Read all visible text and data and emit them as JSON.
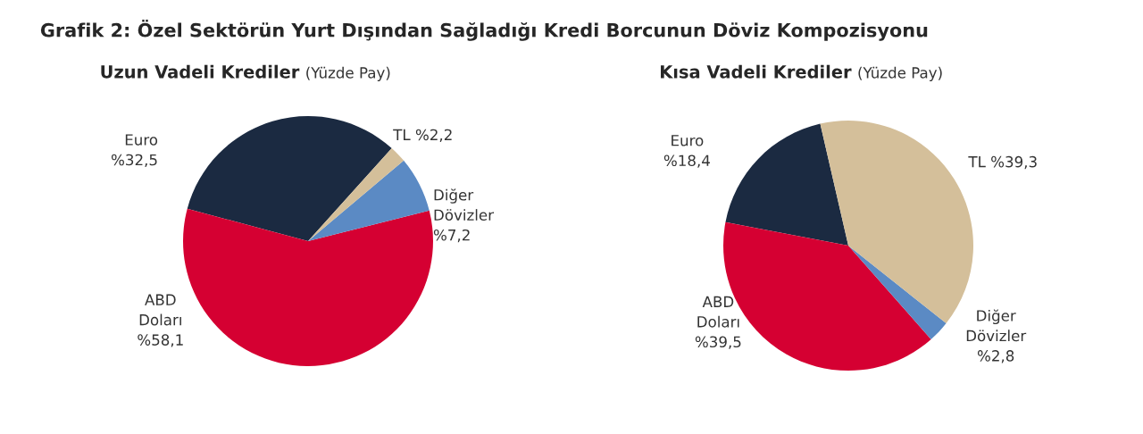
{
  "chart_data": [
    {
      "type": "pie",
      "title": "Uzun Vadeli Krediler",
      "subtitle": "(Yüzde Pay)",
      "annotations": [
        "Grafik 2: Özel Sektörün Yurt Dışından Sağladığı Kredi Borcunun Döviz Kompozisyonu"
      ],
      "categories": [
        "Euro",
        "ABD\nDoları",
        "Diğer\nDövizler",
        "TL"
      ],
      "values": [
        32.5,
        58.1,
        7.2,
        2.2
      ],
      "value_labels": [
        "%32,5",
        "%58,1",
        "%7,2",
        "%2,2"
      ],
      "colors": [
        "#1b2a41",
        "#d50032",
        "#5b8ac4",
        "#d4bf9a"
      ]
    },
    {
      "type": "pie",
      "title": "Kısa Vadeli Krediler",
      "subtitle": "(Yüzde Pay)",
      "categories": [
        "Euro",
        "ABD\nDoları",
        "Diğer\nDövizler",
        "TL"
      ],
      "values": [
        18.4,
        39.5,
        2.8,
        39.3
      ],
      "value_labels": [
        "%18,4",
        "%39,5",
        "%2,8",
        "%39,3"
      ],
      "colors": [
        "#1b2a41",
        "#d50032",
        "#5b8ac4",
        "#d4bf9a"
      ]
    }
  ]
}
